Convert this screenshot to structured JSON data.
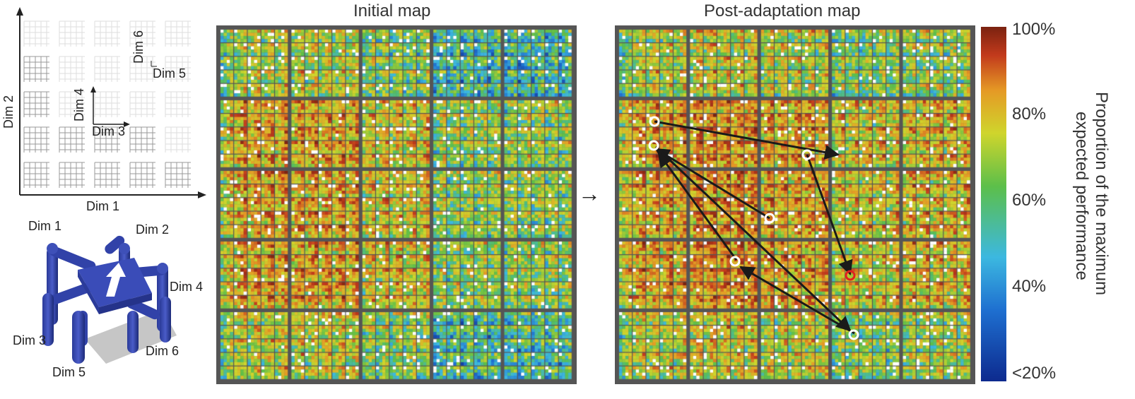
{
  "titles": {
    "initial": "Initial map",
    "post": "Post-adaptation map"
  },
  "schematic": {
    "dim1": "Dim 1",
    "dim2": "Dim 2",
    "dim3": "Dim 3",
    "dim4": "Dim 4",
    "dim5": "Dim 5",
    "dim6": "Dim 6"
  },
  "robot": {
    "dim1": "Dim 1",
    "dim2": "Dim 2",
    "dim3": "Dim 3",
    "dim4": "Dim 4",
    "dim5": "Dim 5",
    "dim6": "Dim 6"
  },
  "colorbar": {
    "label_line1": "Proportion of the maximum",
    "label_line2": "expected performance",
    "ticks": [
      "100%",
      "80%",
      "60%",
      "40%",
      "<20%"
    ],
    "colors": [
      "#0d2a8e",
      "#1e6fd0",
      "#3cb8e0",
      "#5cbf4a",
      "#cfd52c",
      "#e59a25",
      "#c23a1c",
      "#7a2210"
    ]
  },
  "arrow_symbol": "→"
}
